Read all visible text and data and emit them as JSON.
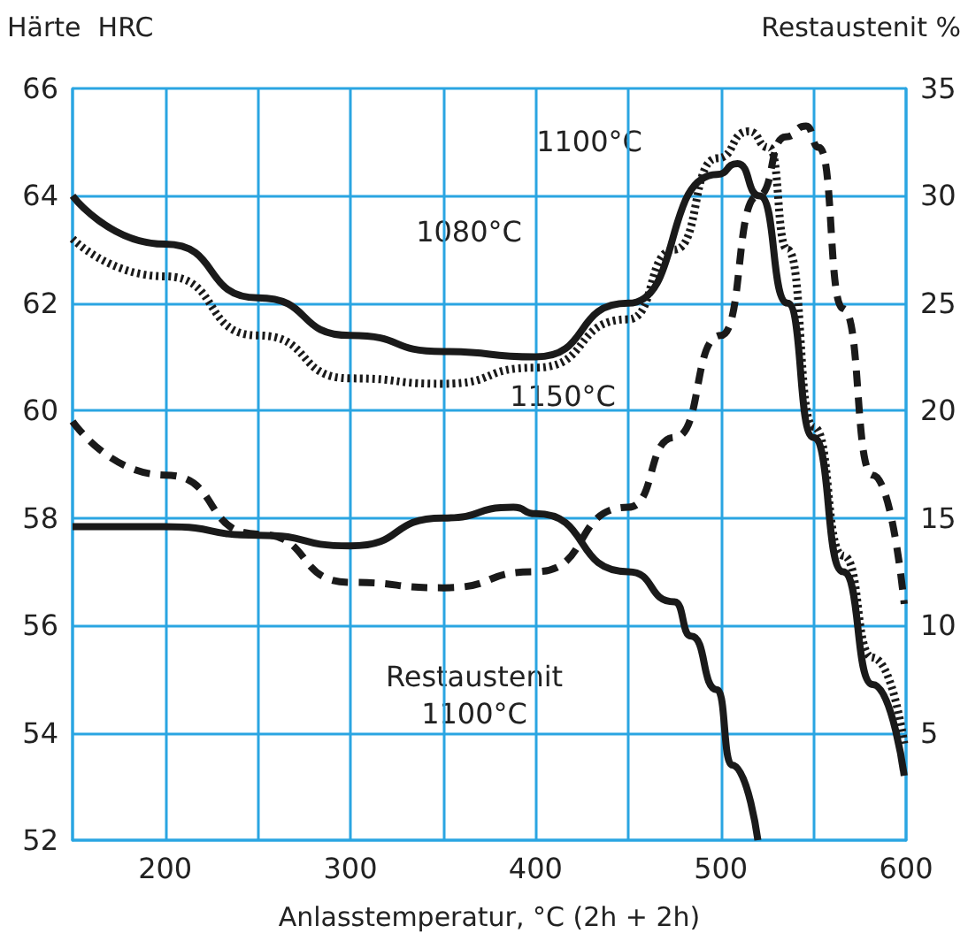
{
  "chart_data": {
    "type": "line",
    "xlabel": "Anlasstemperatur, °C (2h + 2h)",
    "ylabel": "Härte  HRC",
    "y2label": "Restaustenit %",
    "xlim": [
      150,
      600
    ],
    "xticks": [
      {
        "value": 150,
        "label": null
      },
      200,
      {
        "value": 250,
        "label": null
      },
      300,
      {
        "value": 350,
        "label": null
      },
      400,
      {
        "value": 450,
        "label": null
      },
      500,
      {
        "value": 550,
        "label": null
      },
      600
    ],
    "ylim": [
      52,
      66
    ],
    "yticks": [
      52,
      54,
      56,
      58,
      60,
      62,
      64,
      66
    ],
    "y2lim": [
      0,
      35
    ],
    "y2ticks": [
      5,
      10,
      15,
      20,
      25,
      30,
      35
    ],
    "grid": true,
    "marker": "none",
    "series": [
      {
        "color": "#1a1a1a",
        "line_style": "solid",
        "x": [
          150,
          200,
          250,
          300,
          350,
          400,
          450,
          498,
          509,
          521,
          536,
          550,
          566,
          582,
          599
        ],
        "values": [
          64.0,
          63.1,
          62.1,
          61.4,
          61.1,
          61.0,
          62.0,
          64.4,
          64.6,
          64.0,
          62.0,
          59.5,
          57.0,
          54.9,
          53.2
        ]
      },
      {
        "color": "#1a1a1a",
        "line_style": "dotted",
        "x": [
          150,
          200,
          250,
          300,
          350,
          400,
          450,
          475,
          498,
          515,
          526,
          536,
          550,
          566,
          582,
          599
        ],
        "values": [
          63.2,
          62.5,
          61.4,
          60.6,
          60.5,
          60.8,
          61.7,
          63.0,
          64.7,
          65.2,
          64.9,
          63.0,
          59.7,
          57.3,
          55.4,
          53.8
        ]
      },
      {
        "color": "#1a1a1a",
        "line_style": "dashed",
        "x": [
          150,
          200,
          250,
          300,
          350,
          400,
          450,
          475,
          500,
          520,
          535,
          546,
          553,
          566,
          582,
          599
        ],
        "values": [
          59.8,
          58.8,
          57.7,
          56.8,
          56.7,
          57.0,
          58.2,
          59.5,
          61.4,
          64.0,
          65.1,
          65.3,
          64.9,
          61.9,
          58.8,
          56.4
        ]
      },
      {
        "color": "#1a1a1a",
        "line_style": "solid",
        "axis": "y2",
        "x": [
          150,
          200,
          250,
          300,
          350,
          388,
          400,
          450,
          475,
          484,
          498,
          506,
          520
        ],
        "values": [
          14.6,
          14.6,
          14.2,
          13.7,
          15.0,
          15.5,
          15.2,
          12.5,
          11.1,
          9.5,
          7.0,
          3.5,
          0
        ]
      }
    ],
    "annotations": [
      "1080°C",
      "1100°C",
      "1150°C",
      "Restaustenit\n1100°C"
    ]
  }
}
